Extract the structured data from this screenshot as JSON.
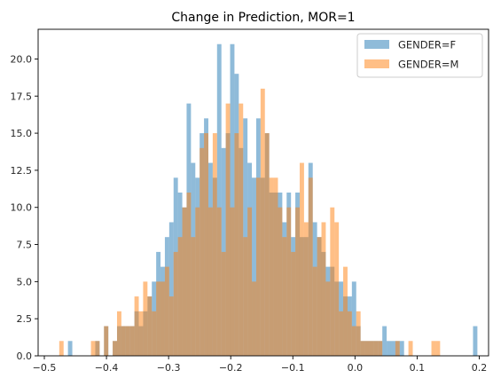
{
  "chart_data": {
    "type": "bar",
    "title": "Change in Prediction, MOR=1",
    "xlabel": "",
    "ylabel": "",
    "xlim": [
      -0.51,
      0.215
    ],
    "ylim": [
      0,
      22
    ],
    "grid": false,
    "legend_position": "top-right",
    "x_ticks": [
      -0.5,
      -0.4,
      -0.3,
      -0.2,
      -0.1,
      0.0,
      0.1,
      0.2
    ],
    "x_tick_labels": [
      "−0.5",
      "−0.4",
      "−0.3",
      "−0.2",
      "−0.1",
      "0.0",
      "0.1",
      "0.2"
    ],
    "y_ticks": [
      0,
      2.5,
      5,
      7.5,
      10,
      12.5,
      15,
      17.5,
      20
    ],
    "y_tick_labels": [
      "0.0",
      "2.5",
      "5.0",
      "7.5",
      "10.0",
      "12.5",
      "15.0",
      "17.5",
      "20.0"
    ],
    "series": [
      {
        "name": "GENDER=F",
        "color": "#1f77b4",
        "opacity": 0.5,
        "bins": [
          [
            -0.462,
            -0.455,
            1
          ],
          [
            -0.418,
            -0.411,
            1
          ],
          [
            -0.404,
            -0.397,
            2
          ],
          [
            -0.39,
            -0.383,
            1
          ],
          [
            -0.383,
            -0.376,
            2
          ],
          [
            -0.376,
            -0.369,
            2
          ],
          [
            -0.369,
            -0.362,
            2
          ],
          [
            -0.362,
            -0.355,
            2
          ],
          [
            -0.355,
            -0.348,
            3
          ],
          [
            -0.348,
            -0.341,
            2
          ],
          [
            -0.341,
            -0.334,
            3
          ],
          [
            -0.334,
            -0.327,
            4
          ],
          [
            -0.327,
            -0.32,
            5
          ],
          [
            -0.32,
            -0.313,
            7
          ],
          [
            -0.313,
            -0.306,
            6
          ],
          [
            -0.306,
            -0.299,
            8
          ],
          [
            -0.299,
            -0.292,
            9
          ],
          [
            -0.292,
            -0.285,
            12
          ],
          [
            -0.285,
            -0.278,
            11
          ],
          [
            -0.278,
            -0.271,
            10
          ],
          [
            -0.271,
            -0.264,
            17
          ],
          [
            -0.264,
            -0.257,
            13
          ],
          [
            -0.257,
            -0.25,
            12
          ],
          [
            -0.25,
            -0.243,
            15
          ],
          [
            -0.243,
            -0.236,
            16
          ],
          [
            -0.236,
            -0.229,
            13
          ],
          [
            -0.229,
            -0.222,
            12
          ],
          [
            -0.222,
            -0.215,
            21
          ],
          [
            -0.215,
            -0.208,
            14
          ],
          [
            -0.208,
            -0.201,
            15
          ],
          [
            -0.201,
            -0.194,
            21
          ],
          [
            -0.194,
            -0.187,
            19
          ],
          [
            -0.187,
            -0.18,
            14
          ],
          [
            -0.18,
            -0.173,
            16
          ],
          [
            -0.173,
            -0.166,
            13
          ],
          [
            -0.166,
            -0.159,
            12
          ],
          [
            -0.159,
            -0.152,
            16
          ],
          [
            -0.152,
            -0.145,
            12
          ],
          [
            -0.145,
            -0.138,
            15
          ],
          [
            -0.138,
            -0.131,
            11
          ],
          [
            -0.131,
            -0.124,
            11
          ],
          [
            -0.124,
            -0.117,
            11
          ],
          [
            -0.117,
            -0.11,
            9
          ],
          [
            -0.11,
            -0.103,
            11
          ],
          [
            -0.103,
            -0.096,
            8
          ],
          [
            -0.096,
            -0.089,
            11
          ],
          [
            -0.089,
            -0.082,
            8
          ],
          [
            -0.082,
            -0.075,
            8
          ],
          [
            -0.075,
            -0.068,
            13
          ],
          [
            -0.068,
            -0.061,
            9
          ],
          [
            -0.061,
            -0.054,
            8
          ],
          [
            -0.054,
            -0.047,
            7
          ],
          [
            -0.047,
            -0.04,
            6
          ],
          [
            -0.04,
            -0.033,
            6
          ],
          [
            -0.033,
            -0.026,
            5
          ],
          [
            -0.026,
            -0.019,
            5
          ],
          [
            -0.019,
            -0.012,
            4
          ],
          [
            -0.012,
            -0.005,
            4
          ],
          [
            -0.005,
            0.002,
            5
          ],
          [
            0.002,
            0.009,
            2
          ],
          [
            0.009,
            0.016,
            1
          ],
          [
            0.016,
            0.023,
            1
          ],
          [
            0.023,
            0.03,
            1
          ],
          [
            0.03,
            0.037,
            1
          ],
          [
            0.037,
            0.044,
            1
          ],
          [
            0.044,
            0.051,
            2
          ],
          [
            0.051,
            0.058,
            1
          ],
          [
            0.058,
            0.065,
            1
          ],
          [
            0.065,
            0.072,
            1
          ],
          [
            0.072,
            0.079,
            1
          ],
          [
            0.19,
            0.197,
            2
          ]
        ]
      },
      {
        "name": "GENDER=M",
        "color": "#ff7f0e",
        "opacity": 0.5,
        "bins": [
          [
            -0.476,
            -0.469,
            1
          ],
          [
            -0.425,
            -0.418,
            1
          ],
          [
            -0.418,
            -0.411,
            1
          ],
          [
            -0.404,
            -0.397,
            2
          ],
          [
            -0.39,
            -0.383,
            1
          ],
          [
            -0.383,
            -0.376,
            3
          ],
          [
            -0.376,
            -0.369,
            2
          ],
          [
            -0.369,
            -0.362,
            2
          ],
          [
            -0.362,
            -0.355,
            2
          ],
          [
            -0.355,
            -0.348,
            4
          ],
          [
            -0.348,
            -0.341,
            3
          ],
          [
            -0.341,
            -0.334,
            5
          ],
          [
            -0.334,
            -0.327,
            4
          ],
          [
            -0.327,
            -0.32,
            3
          ],
          [
            -0.32,
            -0.313,
            5
          ],
          [
            -0.313,
            -0.306,
            5
          ],
          [
            -0.306,
            -0.299,
            6
          ],
          [
            -0.299,
            -0.292,
            4
          ],
          [
            -0.292,
            -0.285,
            7
          ],
          [
            -0.285,
            -0.278,
            8
          ],
          [
            -0.278,
            -0.271,
            10
          ],
          [
            -0.271,
            -0.264,
            11
          ],
          [
            -0.264,
            -0.257,
            8
          ],
          [
            -0.257,
            -0.25,
            10
          ],
          [
            -0.25,
            -0.243,
            14
          ],
          [
            -0.243,
            -0.236,
            15
          ],
          [
            -0.236,
            -0.229,
            10
          ],
          [
            -0.229,
            -0.222,
            15
          ],
          [
            -0.222,
            -0.215,
            10
          ],
          [
            -0.215,
            -0.208,
            7
          ],
          [
            -0.208,
            -0.201,
            17
          ],
          [
            -0.201,
            -0.194,
            10
          ],
          [
            -0.194,
            -0.187,
            15
          ],
          [
            -0.187,
            -0.18,
            17
          ],
          [
            -0.18,
            -0.173,
            8
          ],
          [
            -0.173,
            -0.166,
            10
          ],
          [
            -0.166,
            -0.159,
            5
          ],
          [
            -0.159,
            -0.152,
            12
          ],
          [
            -0.152,
            -0.145,
            18
          ],
          [
            -0.145,
            -0.138,
            15
          ],
          [
            -0.138,
            -0.131,
            12
          ],
          [
            -0.131,
            -0.124,
            12
          ],
          [
            -0.124,
            -0.117,
            10
          ],
          [
            -0.117,
            -0.11,
            8
          ],
          [
            -0.11,
            -0.103,
            10
          ],
          [
            -0.103,
            -0.096,
            7
          ],
          [
            -0.096,
            -0.089,
            10
          ],
          [
            -0.089,
            -0.082,
            13
          ],
          [
            -0.082,
            -0.075,
            9
          ],
          [
            -0.075,
            -0.068,
            12
          ],
          [
            -0.068,
            -0.061,
            6
          ],
          [
            -0.061,
            -0.054,
            8
          ],
          [
            -0.054,
            -0.047,
            9
          ],
          [
            -0.047,
            -0.04,
            5
          ],
          [
            -0.04,
            -0.033,
            10
          ],
          [
            -0.033,
            -0.026,
            9
          ],
          [
            -0.026,
            -0.019,
            3
          ],
          [
            -0.019,
            -0.012,
            6
          ],
          [
            -0.012,
            -0.005,
            3
          ],
          [
            -0.005,
            0.002,
            2
          ],
          [
            0.002,
            0.009,
            3
          ],
          [
            0.009,
            0.016,
            1
          ],
          [
            0.016,
            0.023,
            1
          ],
          [
            0.023,
            0.03,
            1
          ],
          [
            0.03,
            0.037,
            1
          ],
          [
            0.037,
            0.044,
            1
          ],
          [
            0.065,
            0.072,
            1
          ],
          [
            0.086,
            0.093,
            1
          ],
          [
            0.123,
            0.13,
            1
          ],
          [
            0.13,
            0.137,
            1
          ]
        ]
      }
    ]
  }
}
